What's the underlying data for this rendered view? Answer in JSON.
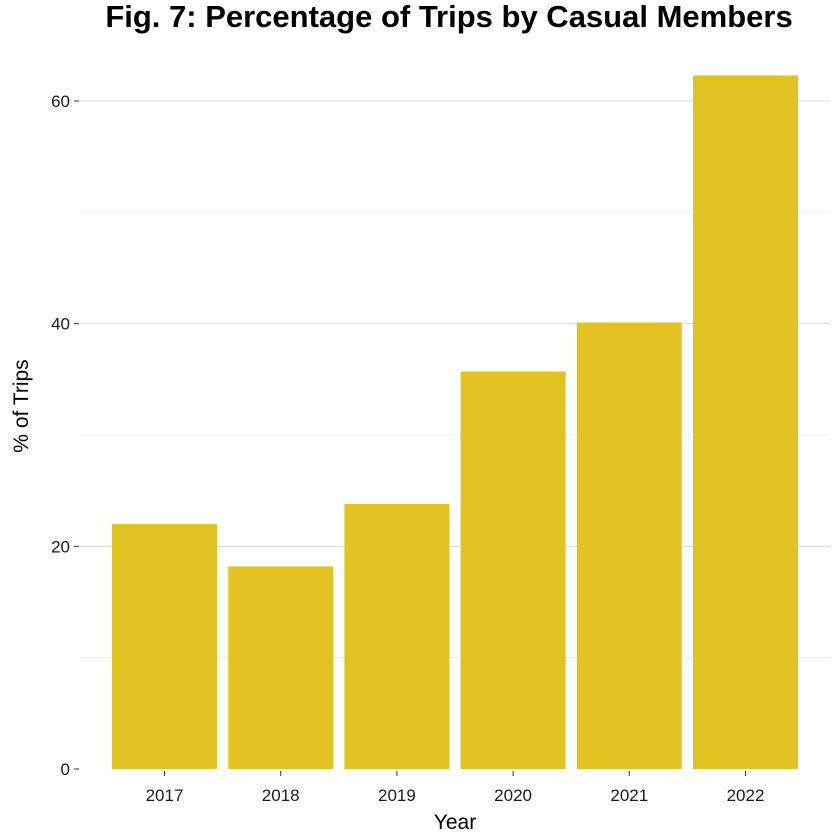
{
  "chart_data": {
    "type": "bar",
    "title": "Fig. 7: Percentage of Trips by Casual Members",
    "xlabel": "Year",
    "ylabel": "% of Trips",
    "categories": [
      "2017",
      "2018",
      "2019",
      "2020",
      "2021",
      "2022"
    ],
    "values": [
      22.0,
      18.2,
      23.8,
      35.7,
      40.1,
      62.3
    ],
    "ylim": [
      0,
      65
    ],
    "yticks": [
      0,
      20,
      40,
      60
    ],
    "ytick_labels": [
      "0",
      "20",
      "40",
      "60"
    ],
    "y_minor_ticks": [
      10,
      30,
      50
    ],
    "grid": "horizontal",
    "bar_color": "#E2C322",
    "legend": "none"
  }
}
